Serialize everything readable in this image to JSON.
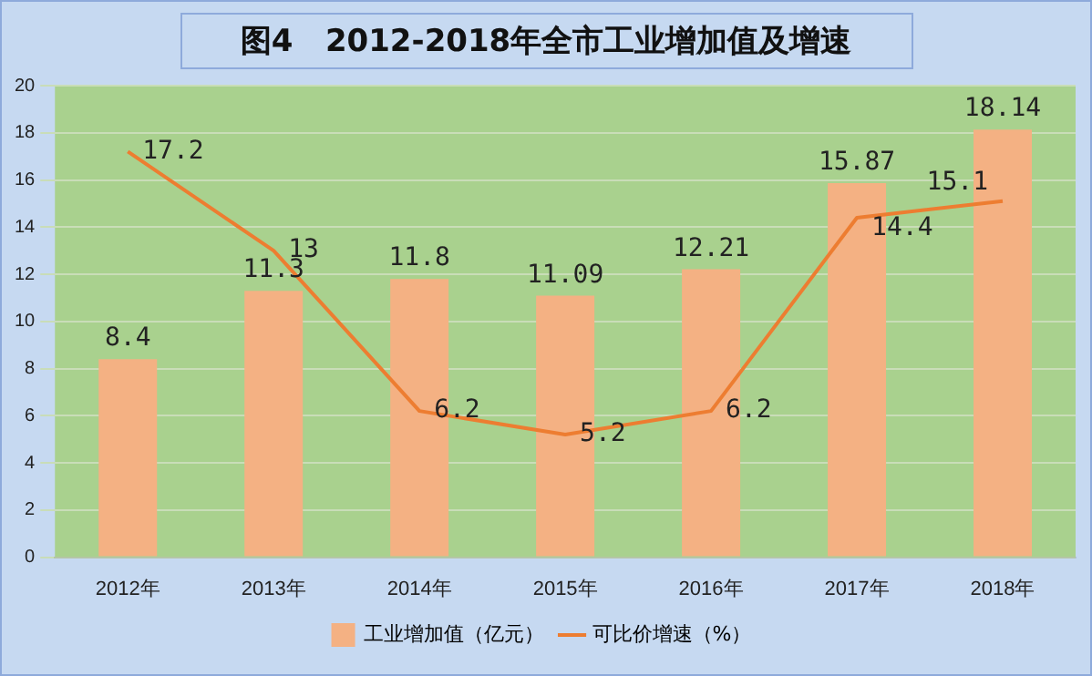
{
  "chart_data": {
    "type": "bar",
    "title": "图4   2012-2018年全市工业增加值及增速",
    "categories": [
      "2012年",
      "2013年",
      "2014年",
      "2015年",
      "2016年",
      "2017年",
      "2018年"
    ],
    "series": [
      {
        "name": "工业增加值（亿元）",
        "color": "#f4b183",
        "values": [
          8.4,
          11.3,
          11.8,
          11.09,
          12.21,
          15.87,
          18.14
        ]
      },
      {
        "name": "可比价增速（%）",
        "type": "line",
        "color": "#ed7d31",
        "values": [
          17.2,
          13,
          6.2,
          5.2,
          6.2,
          14.4,
          15.1
        ]
      }
    ],
    "ylim": [
      0,
      20
    ],
    "yticks": [
      0,
      2,
      4,
      6,
      8,
      10,
      12,
      14,
      16,
      18,
      20
    ],
    "grid": "y",
    "legend": "bottom",
    "data_labels": true,
    "marker": "none",
    "line_style": "solid"
  }
}
